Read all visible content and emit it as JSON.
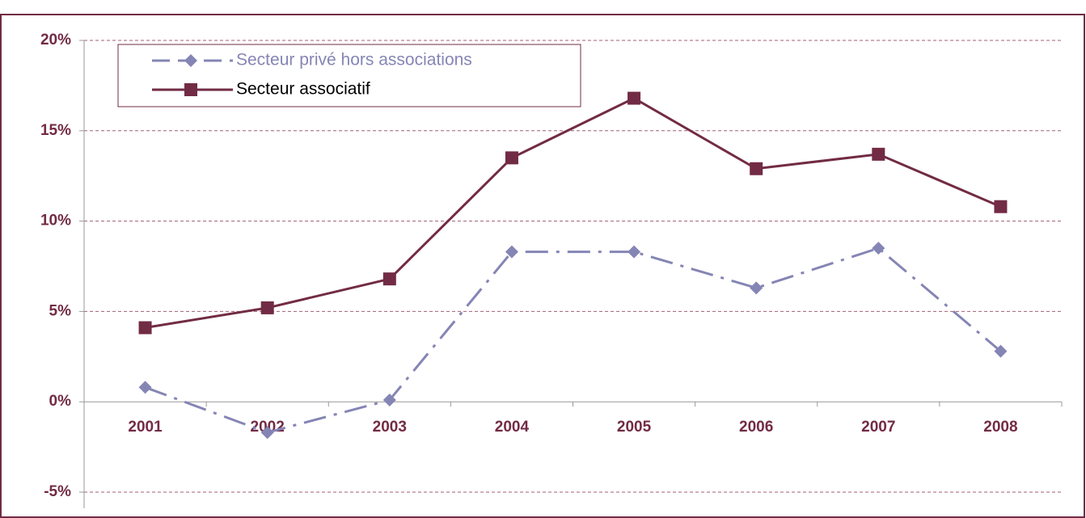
{
  "chart_data": {
    "type": "line",
    "categories": [
      "2001",
      "2002",
      "2003",
      "2004",
      "2005",
      "2006",
      "2007",
      "2008"
    ],
    "series": [
      {
        "name": "Secteur privé hors associations",
        "color": "#8585b5",
        "marker": "diamond",
        "dash": true,
        "values": [
          0.8,
          -1.7,
          0.1,
          8.3,
          8.3,
          6.3,
          8.5,
          2.8
        ]
      },
      {
        "name": "Secteur associatif",
        "color": "#722b44",
        "marker": "square",
        "dash": false,
        "values": [
          4.1,
          5.2,
          6.8,
          13.5,
          16.8,
          12.9,
          13.7,
          10.8
        ]
      }
    ],
    "ylim": [
      -5,
      20
    ],
    "yticks": [
      {
        "value": -5,
        "label": "-5%"
      },
      {
        "value": 0,
        "label": "0%"
      },
      {
        "value": 5,
        "label": "5%"
      },
      {
        "value": 10,
        "label": "10%"
      },
      {
        "value": 15,
        "label": "15%"
      },
      {
        "value": 20,
        "label": "20%"
      }
    ],
    "grid": true,
    "legend": "top-left"
  }
}
